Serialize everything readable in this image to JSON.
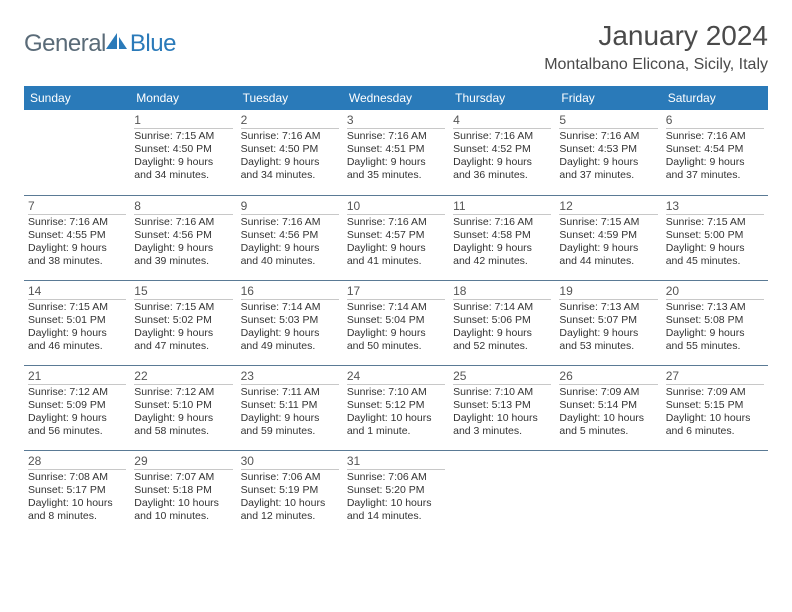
{
  "logo": {
    "text1": "General",
    "text2": "Blue"
  },
  "title": "January 2024",
  "location": "Montalbano Elicona, Sicily, Italy",
  "colors": {
    "header_bg": "#2a7ab9",
    "header_text": "#ffffff",
    "rule": "#5a7a95",
    "text": "#333333",
    "logo_general": "#5a6b78",
    "logo_blue": "#2a7ab9"
  },
  "day_headers": [
    "Sunday",
    "Monday",
    "Tuesday",
    "Wednesday",
    "Thursday",
    "Friday",
    "Saturday"
  ],
  "weeks": [
    [
      null,
      {
        "n": "1",
        "sr": "Sunrise: 7:15 AM",
        "ss": "Sunset: 4:50 PM",
        "d1": "Daylight: 9 hours",
        "d2": "and 34 minutes."
      },
      {
        "n": "2",
        "sr": "Sunrise: 7:16 AM",
        "ss": "Sunset: 4:50 PM",
        "d1": "Daylight: 9 hours",
        "d2": "and 34 minutes."
      },
      {
        "n": "3",
        "sr": "Sunrise: 7:16 AM",
        "ss": "Sunset: 4:51 PM",
        "d1": "Daylight: 9 hours",
        "d2": "and 35 minutes."
      },
      {
        "n": "4",
        "sr": "Sunrise: 7:16 AM",
        "ss": "Sunset: 4:52 PM",
        "d1": "Daylight: 9 hours",
        "d2": "and 36 minutes."
      },
      {
        "n": "5",
        "sr": "Sunrise: 7:16 AM",
        "ss": "Sunset: 4:53 PM",
        "d1": "Daylight: 9 hours",
        "d2": "and 37 minutes."
      },
      {
        "n": "6",
        "sr": "Sunrise: 7:16 AM",
        "ss": "Sunset: 4:54 PM",
        "d1": "Daylight: 9 hours",
        "d2": "and 37 minutes."
      }
    ],
    [
      {
        "n": "7",
        "sr": "Sunrise: 7:16 AM",
        "ss": "Sunset: 4:55 PM",
        "d1": "Daylight: 9 hours",
        "d2": "and 38 minutes."
      },
      {
        "n": "8",
        "sr": "Sunrise: 7:16 AM",
        "ss": "Sunset: 4:56 PM",
        "d1": "Daylight: 9 hours",
        "d2": "and 39 minutes."
      },
      {
        "n": "9",
        "sr": "Sunrise: 7:16 AM",
        "ss": "Sunset: 4:56 PM",
        "d1": "Daylight: 9 hours",
        "d2": "and 40 minutes."
      },
      {
        "n": "10",
        "sr": "Sunrise: 7:16 AM",
        "ss": "Sunset: 4:57 PM",
        "d1": "Daylight: 9 hours",
        "d2": "and 41 minutes."
      },
      {
        "n": "11",
        "sr": "Sunrise: 7:16 AM",
        "ss": "Sunset: 4:58 PM",
        "d1": "Daylight: 9 hours",
        "d2": "and 42 minutes."
      },
      {
        "n": "12",
        "sr": "Sunrise: 7:15 AM",
        "ss": "Sunset: 4:59 PM",
        "d1": "Daylight: 9 hours",
        "d2": "and 44 minutes."
      },
      {
        "n": "13",
        "sr": "Sunrise: 7:15 AM",
        "ss": "Sunset: 5:00 PM",
        "d1": "Daylight: 9 hours",
        "d2": "and 45 minutes."
      }
    ],
    [
      {
        "n": "14",
        "sr": "Sunrise: 7:15 AM",
        "ss": "Sunset: 5:01 PM",
        "d1": "Daylight: 9 hours",
        "d2": "and 46 minutes."
      },
      {
        "n": "15",
        "sr": "Sunrise: 7:15 AM",
        "ss": "Sunset: 5:02 PM",
        "d1": "Daylight: 9 hours",
        "d2": "and 47 minutes."
      },
      {
        "n": "16",
        "sr": "Sunrise: 7:14 AM",
        "ss": "Sunset: 5:03 PM",
        "d1": "Daylight: 9 hours",
        "d2": "and 49 minutes."
      },
      {
        "n": "17",
        "sr": "Sunrise: 7:14 AM",
        "ss": "Sunset: 5:04 PM",
        "d1": "Daylight: 9 hours",
        "d2": "and 50 minutes."
      },
      {
        "n": "18",
        "sr": "Sunrise: 7:14 AM",
        "ss": "Sunset: 5:06 PM",
        "d1": "Daylight: 9 hours",
        "d2": "and 52 minutes."
      },
      {
        "n": "19",
        "sr": "Sunrise: 7:13 AM",
        "ss": "Sunset: 5:07 PM",
        "d1": "Daylight: 9 hours",
        "d2": "and 53 minutes."
      },
      {
        "n": "20",
        "sr": "Sunrise: 7:13 AM",
        "ss": "Sunset: 5:08 PM",
        "d1": "Daylight: 9 hours",
        "d2": "and 55 minutes."
      }
    ],
    [
      {
        "n": "21",
        "sr": "Sunrise: 7:12 AM",
        "ss": "Sunset: 5:09 PM",
        "d1": "Daylight: 9 hours",
        "d2": "and 56 minutes."
      },
      {
        "n": "22",
        "sr": "Sunrise: 7:12 AM",
        "ss": "Sunset: 5:10 PM",
        "d1": "Daylight: 9 hours",
        "d2": "and 58 minutes."
      },
      {
        "n": "23",
        "sr": "Sunrise: 7:11 AM",
        "ss": "Sunset: 5:11 PM",
        "d1": "Daylight: 9 hours",
        "d2": "and 59 minutes."
      },
      {
        "n": "24",
        "sr": "Sunrise: 7:10 AM",
        "ss": "Sunset: 5:12 PM",
        "d1": "Daylight: 10 hours",
        "d2": "and 1 minute."
      },
      {
        "n": "25",
        "sr": "Sunrise: 7:10 AM",
        "ss": "Sunset: 5:13 PM",
        "d1": "Daylight: 10 hours",
        "d2": "and 3 minutes."
      },
      {
        "n": "26",
        "sr": "Sunrise: 7:09 AM",
        "ss": "Sunset: 5:14 PM",
        "d1": "Daylight: 10 hours",
        "d2": "and 5 minutes."
      },
      {
        "n": "27",
        "sr": "Sunrise: 7:09 AM",
        "ss": "Sunset: 5:15 PM",
        "d1": "Daylight: 10 hours",
        "d2": "and 6 minutes."
      }
    ],
    [
      {
        "n": "28",
        "sr": "Sunrise: 7:08 AM",
        "ss": "Sunset: 5:17 PM",
        "d1": "Daylight: 10 hours",
        "d2": "and 8 minutes."
      },
      {
        "n": "29",
        "sr": "Sunrise: 7:07 AM",
        "ss": "Sunset: 5:18 PM",
        "d1": "Daylight: 10 hours",
        "d2": "and 10 minutes."
      },
      {
        "n": "30",
        "sr": "Sunrise: 7:06 AM",
        "ss": "Sunset: 5:19 PM",
        "d1": "Daylight: 10 hours",
        "d2": "and 12 minutes."
      },
      {
        "n": "31",
        "sr": "Sunrise: 7:06 AM",
        "ss": "Sunset: 5:20 PM",
        "d1": "Daylight: 10 hours",
        "d2": "and 14 minutes."
      },
      null,
      null,
      null
    ]
  ]
}
